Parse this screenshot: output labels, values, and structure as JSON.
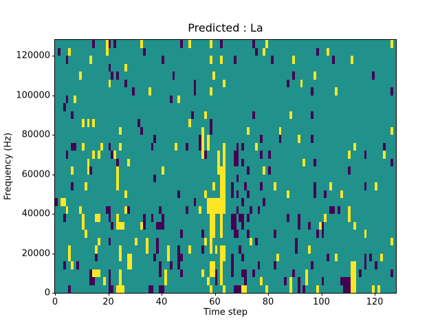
{
  "chart_data": {
    "type": "heatmap",
    "title": "Predicted : La",
    "xlabel": "Time step",
    "ylabel": "Frequency (Hz)",
    "x_ticks": [
      0,
      20,
      40,
      60,
      80,
      100,
      120
    ],
    "y_ticks": [
      0,
      20000,
      40000,
      60000,
      80000,
      100000,
      120000
    ],
    "x_range": [
      0,
      128
    ],
    "y_range": [
      0,
      128000
    ],
    "grid": {
      "cols": 128,
      "rows": 32
    },
    "colors": {
      "figure_bg": "#ffffff",
      "background_mid": "#21918c",
      "high_yellow": "#fde725",
      "low_purple": "#440154",
      "text": "#000000"
    },
    "legend": "none",
    "cells_note": "rows indexed from top (row 0 = 124000-128000 Hz band); columns = time steps",
    "cells": {
      "high": {
        "0": [
          19,
          32,
          50,
          58,
          79,
          126
        ],
        "1": [
          5,
          19,
          78,
          102
        ],
        "2": [
          13,
          58,
          62,
          89,
          111
        ],
        "3": [
          26
        ],
        "4": [
          9,
          59,
          97
        ],
        "5": [
          20,
          63,
          92
        ],
        "6": [
          35,
          58,
          105
        ],
        "7": [
          7,
          46
        ],
        "9": [
          56,
          88
        ],
        "10": [
          10,
          12,
          14,
          50
        ],
        "11": [
          24,
          55,
          72,
          84,
          126
        ],
        "12": [
          55,
          57,
          91
        ],
        "13": [
          10,
          17,
          24,
          45,
          55,
          57,
          63,
          75,
          112
        ],
        "14": [
          14,
          16,
          22,
          55,
          61,
          63,
          110,
          123
        ],
        "15": [
          12,
          27,
          61,
          63,
          93
        ],
        "16": [
          6,
          12,
          23,
          40,
          61,
          62,
          63,
          78
        ],
        "17": [
          23,
          62,
          63
        ],
        "18": [
          11,
          23,
          59,
          62,
          63,
          82,
          103,
          120
        ],
        "19": [
          26,
          56,
          62,
          63,
          87,
          107
        ],
        "20": [
          2,
          3,
          57,
          58,
          59,
          60,
          61,
          62,
          63
        ],
        "21": [
          4,
          9,
          26,
          54,
          57,
          58,
          59,
          60,
          61,
          62,
          63,
          110
        ],
        "22": [
          10,
          15,
          16,
          23,
          58,
          59,
          62,
          101,
          110
        ],
        "23": [
          10,
          23,
          24,
          25,
          32,
          58,
          59,
          62,
          99,
          112
        ],
        "24": [
          11,
          58,
          59,
          62,
          116
        ],
        "25": [
          16,
          30,
          34,
          56,
          58,
          73,
          126
        ],
        "26": [
          5,
          15,
          24,
          34,
          42,
          50,
          58,
          60,
          62,
          63,
          95
        ],
        "27": [
          5,
          24,
          27,
          28,
          42,
          62,
          63,
          83,
          105,
          122
        ],
        "28": [
          6,
          27,
          28,
          58,
          59,
          62,
          111,
          112
        ],
        "29": [
          14,
          15,
          16,
          24,
          41,
          55,
          58,
          59,
          62,
          94,
          111,
          112
        ],
        "30": [
          18,
          24,
          41,
          57,
          62,
          77,
          88,
          94,
          111,
          112
        ],
        "31": [
          23,
          24,
          25,
          58,
          63,
          70,
          71,
          79,
          88,
          98,
          111,
          112,
          119,
          121
        ]
      },
      "low": {
        "0": [
          14,
          20,
          22,
          47,
          62,
          74
        ],
        "1": [
          1,
          33,
          75,
          98
        ],
        "2": [
          4,
          40,
          67,
          81,
          104
        ],
        "3": [
          20
        ],
        "4": [
          21,
          23,
          44,
          89,
          119
        ],
        "5": [
          26,
          52,
          87
        ],
        "6": [
          29,
          52,
          96,
          126
        ],
        "7": [
          4,
          43
        ],
        "8": [
          3
        ],
        "9": [
          6,
          51,
          74,
          96
        ],
        "10": [
          31,
          58
        ],
        "11": [
          32,
          58
        ],
        "12": [
          37,
          54,
          77,
          84,
          96
        ],
        "13": [
          6,
          7,
          20,
          36,
          49,
          54,
          68,
          70,
          123
        ],
        "14": [
          4,
          21,
          56,
          67,
          68,
          77,
          80,
          116
        ],
        "15": [
          23,
          67,
          68,
          70,
          97,
          126
        ],
        "16": [
          13,
          72,
          80,
          110
        ],
        "17": [
          37,
          68
        ],
        "18": [
          6,
          66,
          71,
          77,
          97,
          116
        ],
        "19": [
          46,
          66,
          68,
          72,
          97,
          101
        ],
        "20": [
          0,
          52,
          70,
          78
        ],
        "21": [
          19,
          20,
          27,
          39,
          49,
          68,
          73,
          76,
          103,
          104,
          106
        ],
        "22": [
          3,
          20,
          33,
          36,
          40,
          66,
          67,
          69,
          70,
          72,
          87,
          91
        ],
        "23": [
          21,
          33,
          38,
          39,
          40,
          66,
          67,
          70,
          91,
          95,
          100
        ],
        "24": [
          47,
          55,
          67,
          68,
          72,
          82,
          98,
          100
        ],
        "25": [
          20,
          38,
          75,
          90
        ],
        "26": [
          38,
          46,
          55,
          69,
          90
        ],
        "27": [
          15,
          37,
          46,
          47,
          66,
          70,
          102,
          116,
          118
        ],
        "28": [
          3,
          8,
          39,
          43,
          46,
          66,
          76,
          82,
          96,
          116,
          120
        ],
        "29": [
          13,
          20,
          39,
          47,
          60,
          66,
          70,
          71,
          74,
          89,
          114,
          126
        ],
        "30": [
          13,
          14,
          20,
          60,
          71,
          86,
          91,
          100,
          107,
          108,
          109,
          110
        ],
        "31": [
          5,
          20,
          21,
          35,
          36,
          39,
          40,
          67,
          68,
          69,
          91,
          93,
          108,
          109,
          110
        ]
      }
    }
  }
}
